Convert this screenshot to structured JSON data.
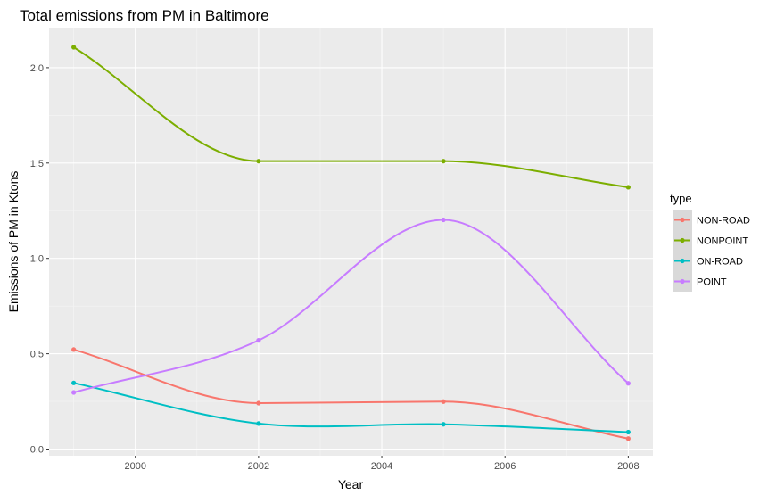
{
  "chart_data": {
    "type": "line",
    "title": "Total emissions from PM in Baltimore",
    "xlabel": "Year",
    "ylabel": "Emissions of PM in Ktons",
    "x": [
      1999,
      2002,
      2005,
      2008
    ],
    "xlim": [
      1998.6,
      2008.4
    ],
    "ylim": [
      -0.035,
      2.21
    ],
    "x_ticks": [
      2000,
      2002,
      2004,
      2006,
      2008
    ],
    "x_tick_labels": [
      "2000",
      "2002",
      "2004",
      "2006",
      "2008"
    ],
    "y_ticks": [
      0.0,
      0.5,
      1.0,
      1.5,
      2.0
    ],
    "y_tick_labels": [
      "0.0",
      "0.5",
      "1.0",
      "1.5",
      "2.0"
    ],
    "grid": true,
    "background": "#ebebeb",
    "legend": {
      "title": "type",
      "position": "right"
    },
    "series": [
      {
        "name": "NON-ROAD",
        "color": "#f8766d",
        "values": [
          0.522,
          0.241,
          0.249,
          0.055
        ]
      },
      {
        "name": "NONPOINT",
        "color": "#7cae00",
        "values": [
          2.107,
          1.51,
          1.51,
          1.373
        ]
      },
      {
        "name": "ON-ROAD",
        "color": "#00bfc4",
        "values": [
          0.347,
          0.134,
          0.13,
          0.089
        ]
      },
      {
        "name": "POINT",
        "color": "#c77cff",
        "values": [
          0.297,
          0.57,
          1.202,
          0.345
        ]
      }
    ]
  }
}
